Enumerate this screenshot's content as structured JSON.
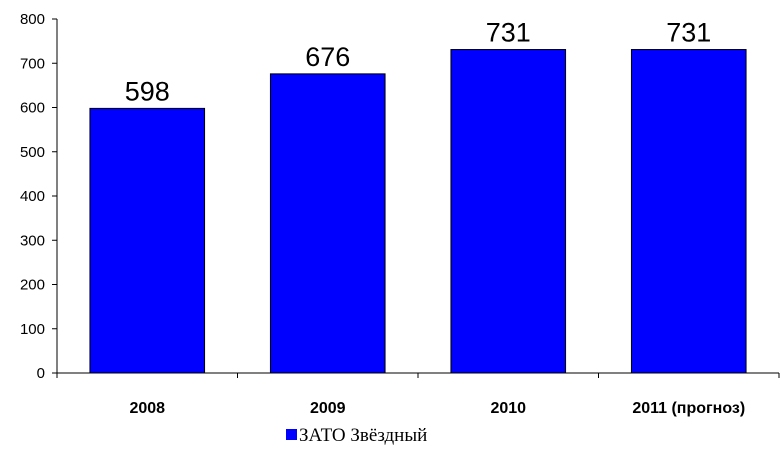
{
  "chart_data": {
    "type": "bar",
    "categories": [
      "2008",
      "2009",
      "2010",
      "2011 (прогноз)"
    ],
    "series": [
      {
        "name": "ЗАТО Звёздный",
        "values": [
          598,
          676,
          731,
          731
        ],
        "color": "#0000ff"
      }
    ],
    "data_labels": [
      "598",
      "676",
      "731",
      "731"
    ],
    "ylim": [
      0,
      800
    ],
    "yticks": [
      0,
      100,
      200,
      300,
      400,
      500,
      600,
      700,
      800
    ],
    "ytick_labels": [
      "0",
      "100",
      "200",
      "300",
      "400",
      "500",
      "600",
      "700",
      "800"
    ],
    "grid": false,
    "legend_position": "bottom"
  }
}
